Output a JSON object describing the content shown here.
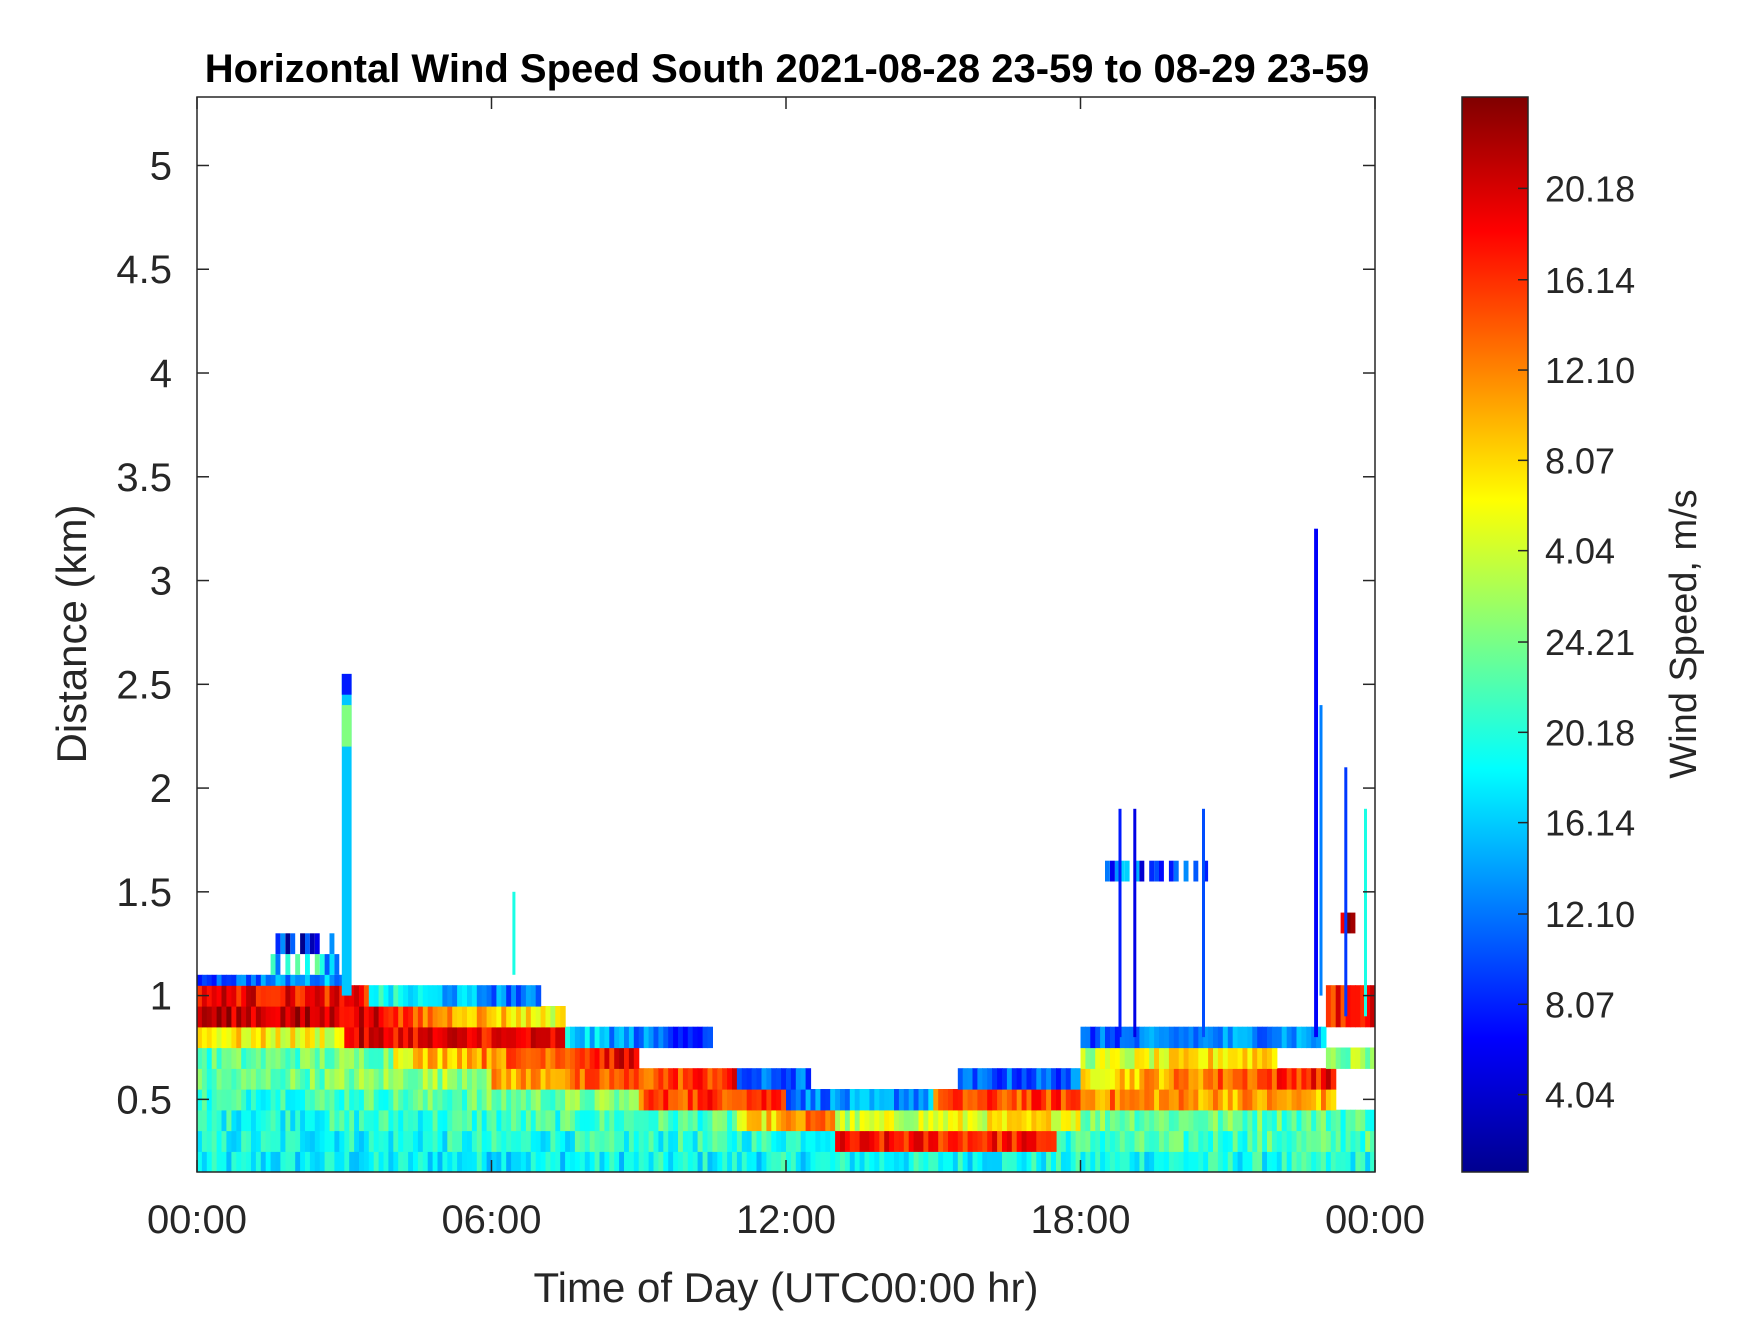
{
  "chart_data": {
    "type": "heatmap",
    "title": "Horizontal Wind Speed South 2021-08-28 23-59 to 08-29 23-59",
    "xlabel": "Time of Day (UTC00:00 hr)",
    "ylabel": "Distance (km)",
    "colorbar_label": "Wind Speed, m/s",
    "xlim": [
      0,
      24
    ],
    "ylim": [
      0.15,
      5.33
    ],
    "x_ticks": [
      {
        "value": 0,
        "label": "00:00"
      },
      {
        "value": 6,
        "label": "06:00"
      },
      {
        "value": 12,
        "label": "12:00"
      },
      {
        "value": 18,
        "label": "18:00"
      },
      {
        "value": 24,
        "label": "00:00"
      }
    ],
    "y_ticks": [
      {
        "value": 0.5,
        "label": "0.5"
      },
      {
        "value": 1,
        "label": "1"
      },
      {
        "value": 1.5,
        "label": "1.5"
      },
      {
        "value": 2,
        "label": "2"
      },
      {
        "value": 2.5,
        "label": "2.5"
      },
      {
        "value": 3,
        "label": "3"
      },
      {
        "value": 3.5,
        "label": "3.5"
      },
      {
        "value": 4,
        "label": "4"
      },
      {
        "value": 4.5,
        "label": "4.5"
      },
      {
        "value": 5,
        "label": "5"
      }
    ],
    "colorbar_ticks": [
      {
        "frac": 0.915,
        "label": "20.18"
      },
      {
        "frac": 0.83,
        "label": "16.14"
      },
      {
        "frac": 0.746,
        "label": "12.10"
      },
      {
        "frac": 0.662,
        "label": "8.07"
      },
      {
        "frac": 0.578,
        "label": "4.04"
      },
      {
        "frac": 0.493,
        "label": "24.21"
      },
      {
        "frac": 0.409,
        "label": "20.18"
      },
      {
        "frac": 0.325,
        "label": "16.14"
      },
      {
        "frac": 0.24,
        "label": "12.10"
      },
      {
        "frac": 0.156,
        "label": "8.07"
      },
      {
        "frac": 0.072,
        "label": "4.04"
      }
    ],
    "colormap": "jet",
    "grid": false,
    "layers": [
      {
        "x_start": 0,
        "x_end": 24,
        "y_start": 0.15,
        "y_end": 0.25,
        "v_start": 0.36,
        "v_end": 0.4
      },
      {
        "x_start": 0,
        "x_end": 24,
        "y_start": 0.25,
        "y_end": 0.35,
        "v_start": 0.38,
        "v_end": 0.45
      },
      {
        "x_start": 0,
        "x_end": 11,
        "y_start": 0.35,
        "y_end": 0.45,
        "v_start": 0.4,
        "v_end": 0.45
      },
      {
        "x_start": 11,
        "x_end": 13,
        "y_start": 0.35,
        "y_end": 0.45,
        "v_start": 0.6,
        "v_end": 0.8
      },
      {
        "x_start": 13,
        "x_end": 17.5,
        "y_start": 0.25,
        "y_end": 0.35,
        "v_start": 0.85,
        "v_end": 0.85
      },
      {
        "x_start": 13,
        "x_end": 18,
        "y_start": 0.35,
        "y_end": 0.45,
        "v_start": 0.55,
        "v_end": 0.65
      },
      {
        "x_start": 18,
        "x_end": 24,
        "y_start": 0.35,
        "y_end": 0.45,
        "v_start": 0.5,
        "v_end": 0.45
      },
      {
        "x_start": 0,
        "x_end": 9,
        "y_start": 0.45,
        "y_end": 0.55,
        "v_start": 0.42,
        "v_end": 0.5
      },
      {
        "x_start": 9,
        "x_end": 12,
        "y_start": 0.45,
        "y_end": 0.55,
        "v_start": 0.8,
        "v_end": 0.85
      },
      {
        "x_start": 12,
        "x_end": 15,
        "y_start": 0.45,
        "y_end": 0.55,
        "v_start": 0.25,
        "v_end": 0.28
      },
      {
        "x_start": 15,
        "x_end": 18,
        "y_start": 0.45,
        "y_end": 0.55,
        "v_start": 0.78,
        "v_end": 0.82
      },
      {
        "x_start": 18,
        "x_end": 23.2,
        "y_start": 0.45,
        "y_end": 0.55,
        "v_start": 0.75,
        "v_end": 0.7
      },
      {
        "x_start": 0,
        "x_end": 6,
        "y_start": 0.55,
        "y_end": 0.65,
        "v_start": 0.45,
        "v_end": 0.55
      },
      {
        "x_start": 6,
        "x_end": 11,
        "y_start": 0.55,
        "y_end": 0.65,
        "v_start": 0.7,
        "v_end": 0.85
      },
      {
        "x_start": 11,
        "x_end": 12.5,
        "y_start": 0.55,
        "y_end": 0.65,
        "v_start": 0.2,
        "v_end": 0.22
      },
      {
        "x_start": 15.5,
        "x_end": 18,
        "y_start": 0.55,
        "y_end": 0.65,
        "v_start": 0.2,
        "v_end": 0.22
      },
      {
        "x_start": 18,
        "x_end": 23.2,
        "y_start": 0.55,
        "y_end": 0.65,
        "v_start": 0.65,
        "v_end": 0.88
      },
      {
        "x_start": 0,
        "x_end": 4,
        "y_start": 0.65,
        "y_end": 0.75,
        "v_start": 0.45,
        "v_end": 0.5
      },
      {
        "x_start": 4,
        "x_end": 9,
        "y_start": 0.65,
        "y_end": 0.75,
        "v_start": 0.65,
        "v_end": 0.9
      },
      {
        "x_start": 18,
        "x_end": 22,
        "y_start": 0.65,
        "y_end": 0.75,
        "v_start": 0.55,
        "v_end": 0.7
      },
      {
        "x_start": 0,
        "x_end": 3,
        "y_start": 0.75,
        "y_end": 0.85,
        "v_start": 0.65,
        "v_end": 0.6
      },
      {
        "x_start": 3,
        "x_end": 7.5,
        "y_start": 0.75,
        "y_end": 0.85,
        "v_start": 0.9,
        "v_end": 0.88
      },
      {
        "x_start": 7.5,
        "x_end": 10.5,
        "y_start": 0.75,
        "y_end": 0.85,
        "v_start": 0.35,
        "v_end": 0.15
      },
      {
        "x_start": 18,
        "x_end": 23,
        "y_start": 0.75,
        "y_end": 0.85,
        "v_start": 0.2,
        "v_end": 0.3
      },
      {
        "x_start": 0,
        "x_end": 4,
        "y_start": 0.85,
        "y_end": 0.95,
        "v_start": 0.95,
        "v_end": 0.9
      },
      {
        "x_start": 4,
        "x_end": 7.5,
        "y_start": 0.85,
        "y_end": 0.95,
        "v_start": 0.8,
        "v_end": 0.6
      },
      {
        "x_start": 0,
        "x_end": 3.5,
        "y_start": 0.95,
        "y_end": 1.05,
        "v_start": 0.9,
        "v_end": 0.85
      },
      {
        "x_start": 3.5,
        "x_end": 7,
        "y_start": 0.95,
        "y_end": 1.05,
        "v_start": 0.4,
        "v_end": 0.2
      },
      {
        "x_start": 0,
        "x_end": 3,
        "y_start": 1.05,
        "y_end": 1.1,
        "v_start": 0.2,
        "v_end": 0.3
      },
      {
        "x_start": 23,
        "x_end": 24,
        "y_start": 0.65,
        "y_end": 0.75,
        "v_start": 0.5,
        "v_end": 0.55
      },
      {
        "x_start": 23,
        "x_end": 24,
        "y_start": 0.85,
        "y_end": 1.05,
        "v_start": 0.85,
        "v_end": 0.9
      }
    ],
    "spikes": [
      {
        "x": 3.05,
        "width": 0.2,
        "y_start": 1.0,
        "y_end": 2.55,
        "v": 0.32
      },
      {
        "x": 3.05,
        "width": 0.2,
        "y_start": 2.2,
        "y_end": 2.4,
        "v": 0.5
      },
      {
        "x": 3.05,
        "width": 0.2,
        "y_start": 2.45,
        "y_end": 2.55,
        "v": 0.15
      },
      {
        "x": 6.45,
        "width": 0.05,
        "y_start": 1.1,
        "y_end": 1.5,
        "v": 0.4
      },
      {
        "x": 18.8,
        "width": 0.05,
        "y_start": 0.8,
        "y_end": 1.9,
        "v": 0.15
      },
      {
        "x": 19.1,
        "width": 0.05,
        "y_start": 0.8,
        "y_end": 1.9,
        "v": 0.1
      },
      {
        "x": 20.5,
        "width": 0.05,
        "y_start": 0.8,
        "y_end": 1.9,
        "v": 0.2
      },
      {
        "x": 22.8,
        "width": 0.08,
        "y_start": 0.8,
        "y_end": 3.25,
        "v": 0.12
      },
      {
        "x": 22.9,
        "width": 0.06,
        "y_start": 1.0,
        "y_end": 2.4,
        "v": 0.25
      },
      {
        "x": 23.4,
        "width": 0.05,
        "y_start": 0.9,
        "y_end": 2.1,
        "v": 0.18
      },
      {
        "x": 23.8,
        "width": 0.05,
        "y_start": 0.9,
        "y_end": 1.9,
        "v": 0.4
      }
    ],
    "patches": [
      {
        "x_start": 18.5,
        "x_end": 20.7,
        "y_start": 1.55,
        "y_end": 1.65,
        "v": 0.2
      },
      {
        "x_start": 1.5,
        "x_end": 3,
        "y_start": 1.1,
        "y_end": 1.2,
        "v": 0.35
      },
      {
        "x_start": 1.6,
        "x_end": 2.8,
        "y_start": 1.2,
        "y_end": 1.3,
        "v": 0.15
      },
      {
        "x_start": 23.2,
        "x_end": 23.6,
        "y_start": 1.3,
        "y_end": 1.4,
        "v": 0.95
      }
    ]
  }
}
